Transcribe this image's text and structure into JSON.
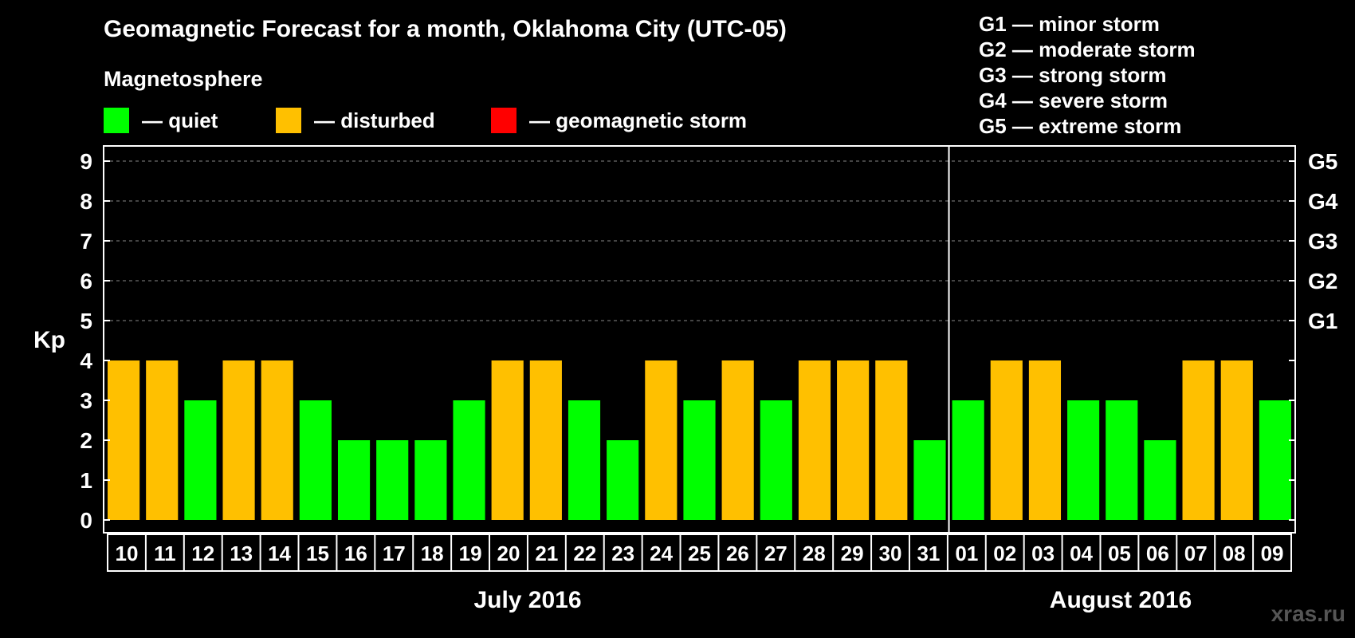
{
  "title": "Geomagnetic Forecast for a month, Oklahoma City (UTC-05)",
  "subtitle": "Magnetosphere",
  "legend": [
    {
      "label": "— quiet",
      "color": "#00ff00"
    },
    {
      "label": "— disturbed",
      "color": "#ffc000"
    },
    {
      "label": "— geomagnetic storm",
      "color": "#ff0000"
    }
  ],
  "storm_scale": [
    "G1 — minor storm",
    "G2 — moderate storm",
    "G3 — strong storm",
    "G4 — severe storm",
    "G5 — extreme storm"
  ],
  "months": [
    "July 2016",
    "August 2016"
  ],
  "ylabel": "Kp",
  "watermark": "xras.ru",
  "chart_data": {
    "type": "bar",
    "title": "Geomagnetic Forecast for a month, Oklahoma City (UTC-05)",
    "ylabel": "Kp",
    "ylim": [
      0,
      9
    ],
    "yticks": [
      0,
      1,
      2,
      3,
      4,
      5,
      6,
      7,
      8,
      9
    ],
    "right_axis": [
      {
        "kp": 5,
        "label": "G1"
      },
      {
        "kp": 6,
        "label": "G2"
      },
      {
        "kp": 7,
        "label": "G3"
      },
      {
        "kp": 8,
        "label": "G4"
      },
      {
        "kp": 9,
        "label": "G5"
      }
    ],
    "categories": [
      "10",
      "11",
      "12",
      "13",
      "14",
      "15",
      "16",
      "17",
      "18",
      "19",
      "20",
      "21",
      "22",
      "23",
      "24",
      "25",
      "26",
      "27",
      "28",
      "29",
      "30",
      "31",
      "01",
      "02",
      "03",
      "04",
      "05",
      "06",
      "07",
      "08",
      "09"
    ],
    "values": [
      4,
      4,
      3,
      4,
      4,
      3,
      2,
      2,
      2,
      3,
      4,
      4,
      3,
      2,
      4,
      3,
      4,
      3,
      4,
      4,
      4,
      2,
      3,
      4,
      4,
      3,
      3,
      2,
      4,
      4,
      3
    ],
    "colors": {
      "quiet": "#00ff00",
      "disturbed": "#ffc000"
    },
    "month_split_after_index": 21
  }
}
